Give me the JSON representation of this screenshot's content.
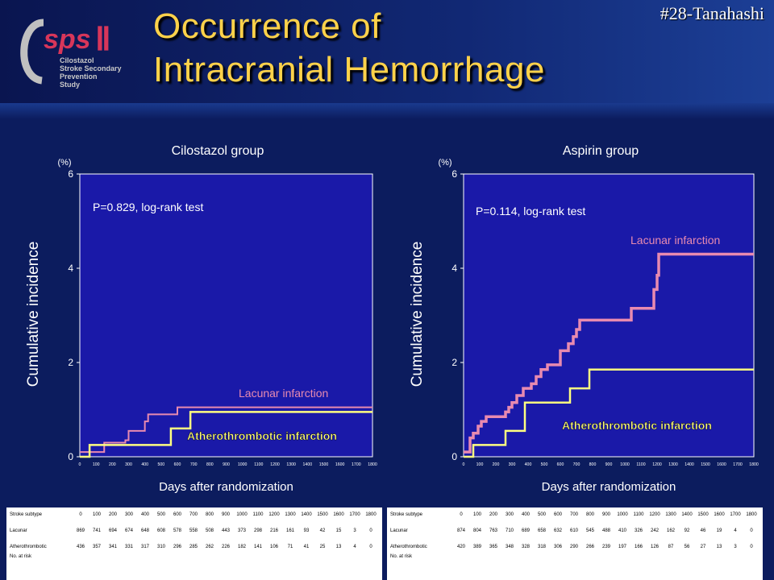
{
  "header": {
    "title_line1": "Occurrence of",
    "title_line2": "Intracranial Hemorrhage",
    "tag": "#28-Tanahashi",
    "logo_main": "sps",
    "logo_numeral": "Ⅱ",
    "logo_lines": [
      "Cilostazol",
      "Stroke Secondary",
      "Prevention",
      "Study"
    ]
  },
  "colors": {
    "background": "#0c1c5e",
    "plot_bg": "#1a19a8",
    "lacunar": "#e88ab0",
    "atherothrombotic": "#ffff80",
    "title": "#ffd24a",
    "lacunar_label": "#e88ab0"
  },
  "chart_data": [
    {
      "type": "line",
      "title": "Cilostazol group",
      "xlabel": "Days after randomization",
      "ylabel": "Cumulative incidence",
      "yunit": "(%)",
      "annotation": "P=0.829, log-rank test",
      "xlim": [
        0,
        1800
      ],
      "ylim": [
        0,
        6
      ],
      "xticks": [
        0,
        100,
        200,
        300,
        400,
        500,
        600,
        700,
        800,
        900,
        1000,
        1100,
        1200,
        1300,
        1400,
        1500,
        1600,
        1700,
        1800
      ],
      "yticks": [
        0,
        2,
        4,
        6
      ],
      "series": [
        {
          "name": "Lacunar infarction",
          "color": "#e88ab0",
          "label_pos": "above-right",
          "x": [
            0,
            150,
            280,
            300,
            400,
            400,
            420,
            600,
            1800
          ],
          "y": [
            0.1,
            0.3,
            0.35,
            0.55,
            0.55,
            0.75,
            0.9,
            1.05,
            1.05
          ]
        },
        {
          "name": "Atherothrombotic infarction",
          "color": "#ffff80",
          "label_pos": "below-right",
          "x": [
            0,
            60,
            560,
            680,
            1800
          ],
          "y": [
            0,
            0.25,
            0.6,
            0.95,
            0.95
          ]
        }
      ]
    },
    {
      "type": "line",
      "title": "Aspirin group",
      "xlabel": "Days after randomization",
      "ylabel": "Cumulative incidence",
      "yunit": "(%)",
      "annotation": "P=0.114, log-rank test",
      "xlim": [
        0,
        1800
      ],
      "ylim": [
        0,
        6
      ],
      "xticks": [
        0,
        100,
        200,
        300,
        400,
        500,
        600,
        700,
        800,
        900,
        1000,
        1100,
        1200,
        1300,
        1400,
        1500,
        1600,
        1700,
        1800
      ],
      "yticks": [
        0,
        2,
        4,
        6
      ],
      "series": [
        {
          "name": "Lacunar infarction",
          "color": "#e88ab0",
          "label_pos": "above-right",
          "x": [
            0,
            40,
            60,
            90,
            110,
            140,
            200,
            260,
            280,
            300,
            330,
            370,
            420,
            450,
            480,
            520,
            600,
            650,
            680,
            700,
            720,
            770,
            900,
            1040,
            1180,
            1200,
            1210,
            1800
          ],
          "y": [
            0.1,
            0.4,
            0.5,
            0.65,
            0.75,
            0.85,
            0.85,
            0.95,
            1.05,
            1.15,
            1.3,
            1.45,
            1.55,
            1.7,
            1.85,
            1.95,
            2.25,
            2.4,
            2.55,
            2.7,
            2.9,
            2.9,
            2.9,
            3.15,
            3.55,
            3.85,
            4.3,
            4.3
          ]
        },
        {
          "name": "Atherothrombotic infarction",
          "color": "#ffff80",
          "label_pos": "below-right",
          "x": [
            0,
            60,
            260,
            380,
            660,
            780,
            1800
          ],
          "y": [
            0,
            0.25,
            0.55,
            1.15,
            1.45,
            1.85,
            1.85
          ]
        }
      ]
    }
  ],
  "risk_tables": [
    {
      "header_label": "Stroke subtype",
      "columns": [
        "0",
        "100",
        "200",
        "300",
        "400",
        "500",
        "600",
        "700",
        "800",
        "900",
        "1000",
        "1100",
        "1200",
        "1300",
        "1400",
        "1500",
        "1600",
        "1700",
        "1800"
      ],
      "rows": [
        {
          "label": "Lacunar",
          "values": [
            "869",
            "741",
            "694",
            "674",
            "648",
            "608",
            "578",
            "558",
            "508",
            "443",
            "373",
            "298",
            "216",
            "161",
            "93",
            "42",
            "15",
            "3",
            "0"
          ]
        },
        {
          "label": "Atherothrombotic",
          "values": [
            "436",
            "357",
            "341",
            "331",
            "317",
            "310",
            "296",
            "285",
            "262",
            "226",
            "182",
            "141",
            "106",
            "71",
            "41",
            "25",
            "13",
            "4",
            "0"
          ]
        }
      ],
      "footer": "No. at risk"
    },
    {
      "header_label": "Stroke subtype",
      "columns": [
        "0",
        "100",
        "200",
        "300",
        "400",
        "500",
        "600",
        "700",
        "800",
        "900",
        "1000",
        "1100",
        "1200",
        "1300",
        "1400",
        "1500",
        "1600",
        "1700",
        "1800"
      ],
      "rows": [
        {
          "label": "Lacunar",
          "values": [
            "874",
            "804",
            "763",
            "710",
            "689",
            "658",
            "632",
            "610",
            "545",
            "488",
            "410",
            "326",
            "242",
            "162",
            "92",
            "46",
            "19",
            "4",
            "0"
          ]
        },
        {
          "label": "Atherothrombotic",
          "values": [
            "420",
            "389",
            "365",
            "348",
            "328",
            "318",
            "306",
            "290",
            "266",
            "239",
            "197",
            "166",
            "126",
            "87",
            "56",
            "27",
            "13",
            "3",
            "0"
          ]
        }
      ],
      "footer": "No. at risk"
    }
  ]
}
